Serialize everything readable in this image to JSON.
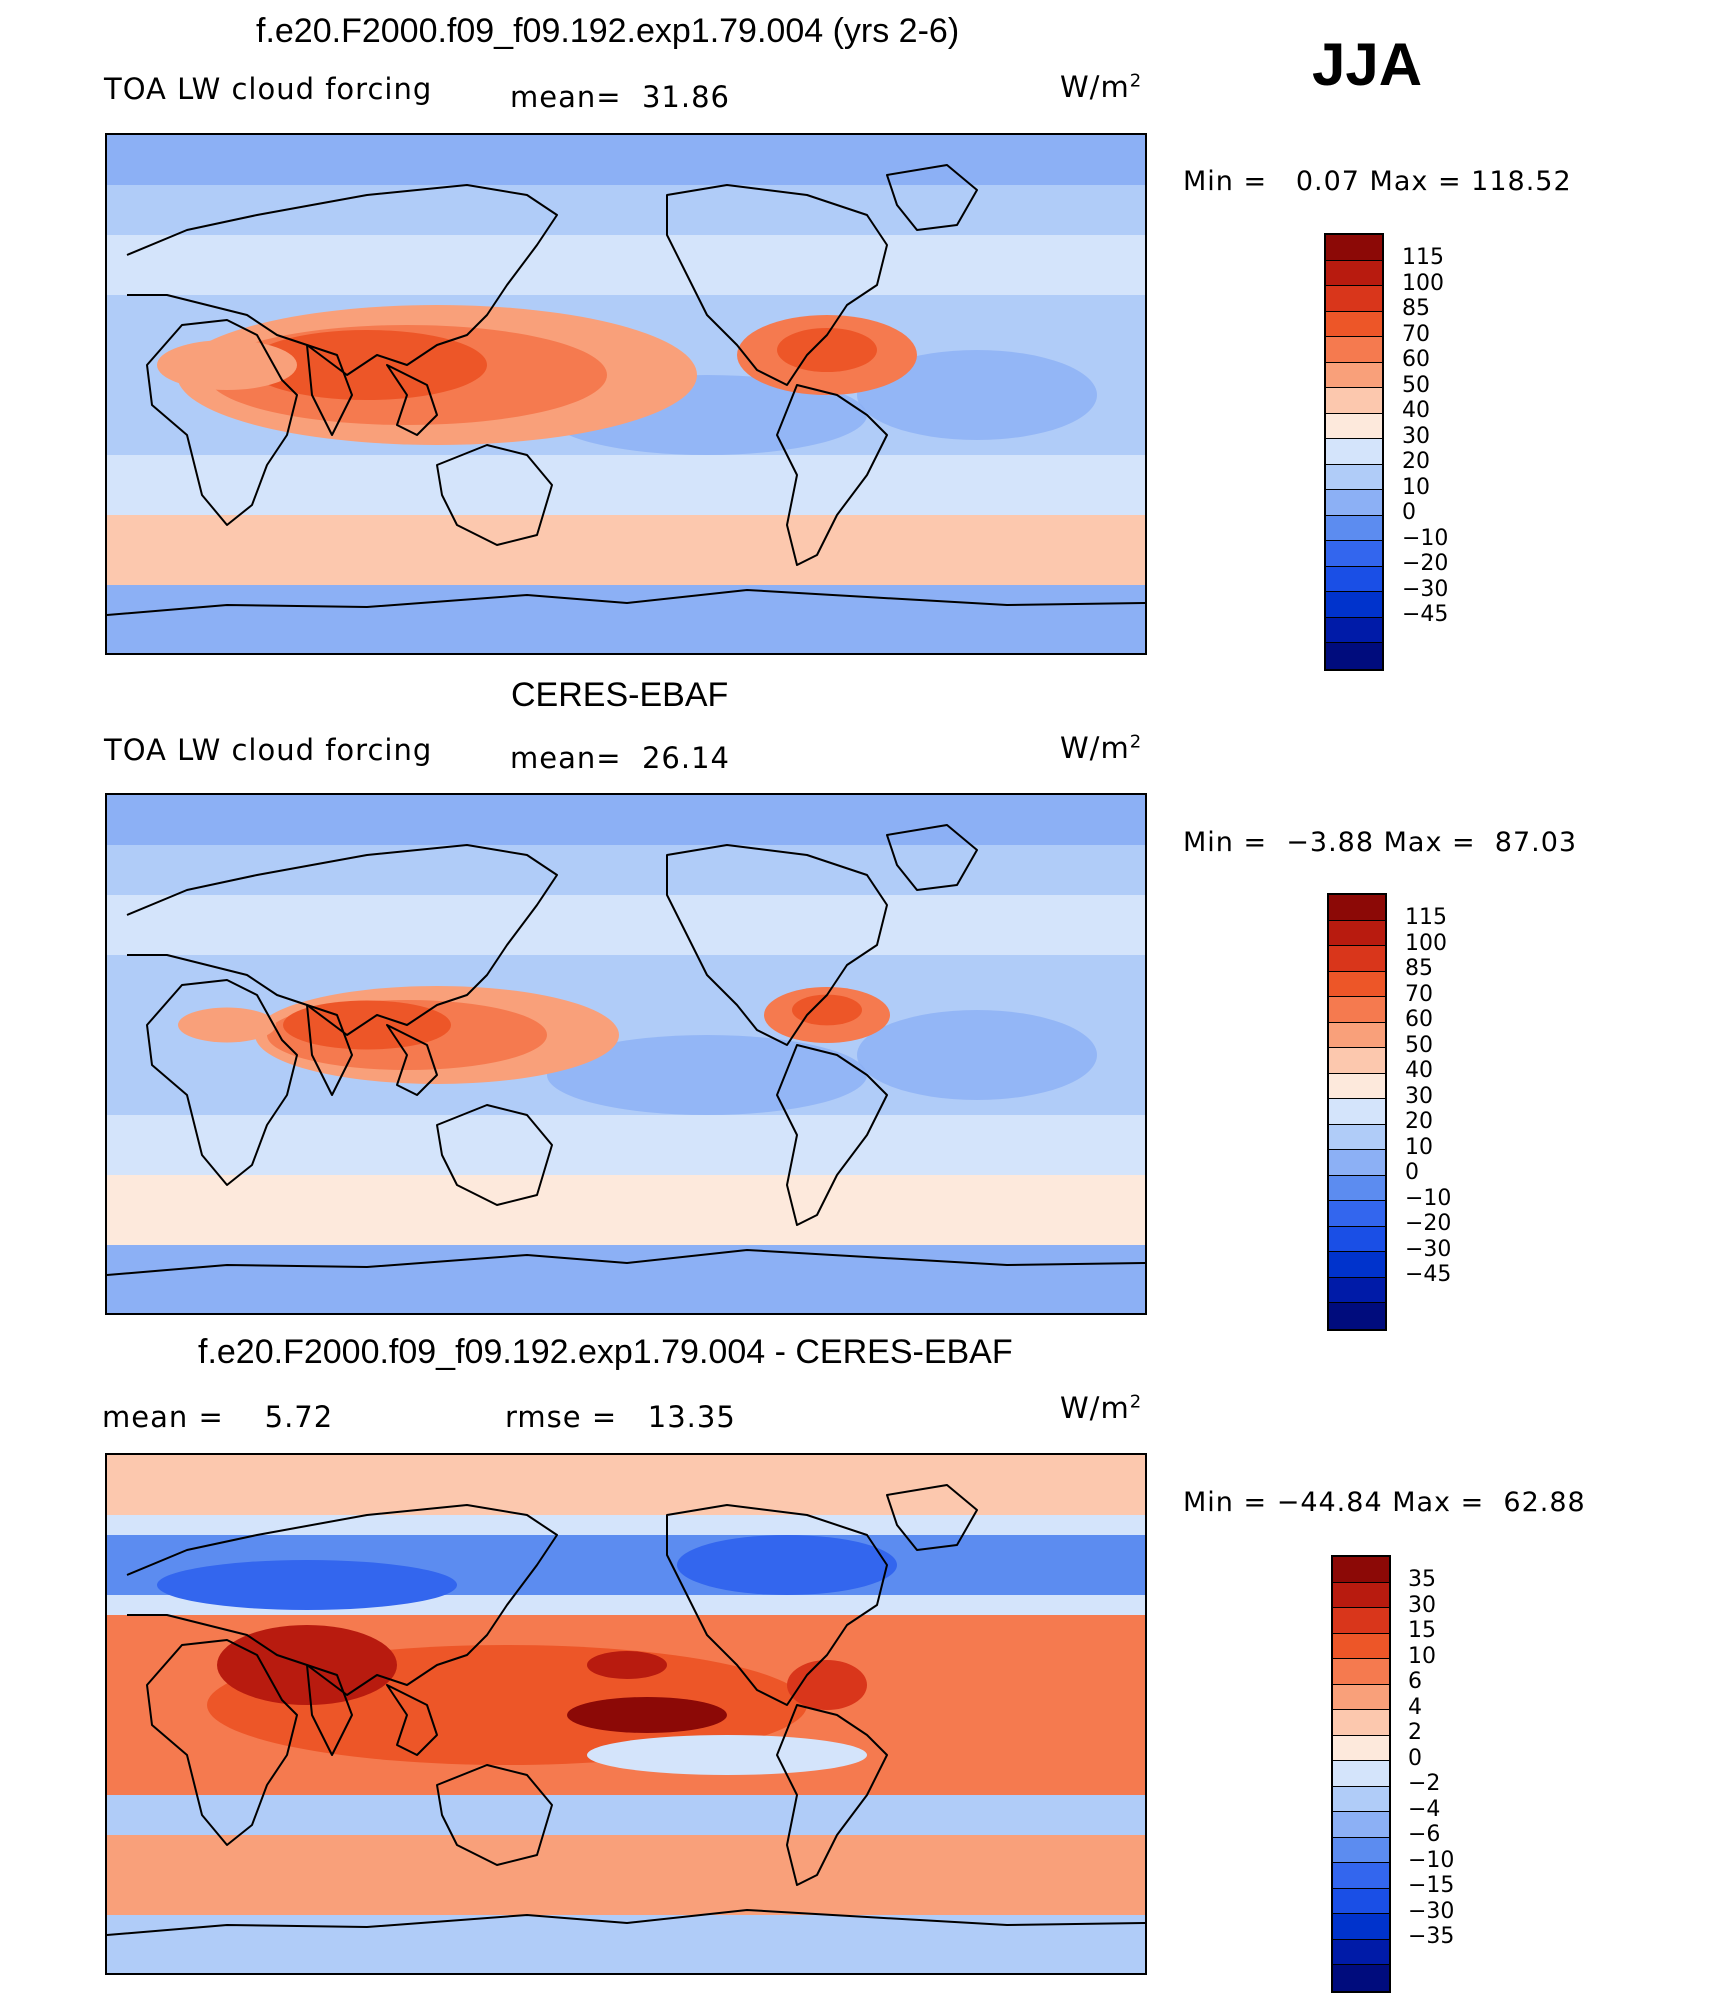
{
  "season": "JJA",
  "units_label": "W/m",
  "units_exp": "2",
  "colors": {
    "blue_red": [
      "#000c7d",
      "#001ba8",
      "#0033cc",
      "#1a4fe6",
      "#3366ee",
      "#5c8cf0",
      "#8cb0f5",
      "#b0ccf8",
      "#d4e4fb",
      "#fde9dc",
      "#fcc8ae",
      "#f9a07a",
      "#f57a4f",
      "#ed5628",
      "#d9361b",
      "#b81b0f",
      "#8c0906"
    ]
  },
  "panels": [
    {
      "title": "f.e20.F2000.f09_f09.192.exp1.79.004 (yrs 2-6)",
      "left_label": "TOA LW cloud forcing",
      "mean_text": "mean=  31.86",
      "min_text": "Min =   0.07 Max = 118.52",
      "colorbar_ticks": [
        "115",
        "100",
        "85",
        "70",
        "60",
        "50",
        "40",
        "30",
        "20",
        "10",
        "0",
        "−10",
        "−20",
        "−30",
        "−45"
      ],
      "map_variant": "model"
    },
    {
      "title": "CERES-EBAF",
      "left_label": "TOA LW cloud forcing",
      "mean_text": "mean=  26.14",
      "min_text": "Min =  −3.88 Max =  87.03",
      "colorbar_ticks": [
        "115",
        "100",
        "85",
        "70",
        "60",
        "50",
        "40",
        "30",
        "20",
        "10",
        "0",
        "−10",
        "−20",
        "−30",
        "−45"
      ],
      "map_variant": "obs"
    },
    {
      "title": "f.e20.F2000.f09_f09.192.exp1.79.004 - CERES-EBAF",
      "left_label": "mean =    5.72",
      "mean_text": "rmse =   13.35",
      "min_text": "Min = −44.84 Max =  62.88",
      "colorbar_ticks": [
        "35",
        "30",
        "15",
        "10",
        "6",
        "4",
        "2",
        "0",
        "−2",
        "−4",
        "−6",
        "−10",
        "−15",
        "−30",
        "−35"
      ],
      "map_variant": "diff"
    }
  ]
}
